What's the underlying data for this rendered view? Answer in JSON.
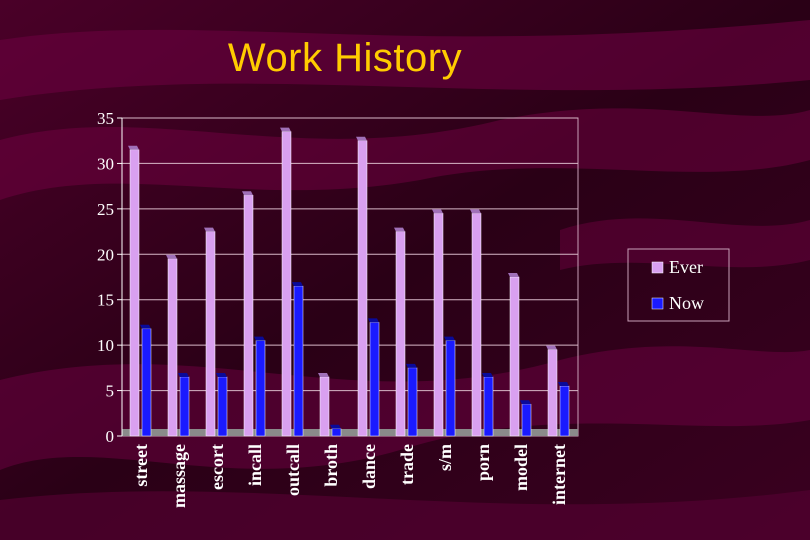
{
  "slide": {
    "title": "Work History",
    "colors": {
      "background": "#3a0020",
      "title": "#ffcc00",
      "ever_fill": "#d9a0f0",
      "now_fill": "#1a1aff",
      "axis_text": "#ffffff"
    }
  },
  "chart_data": {
    "type": "bar",
    "title": "Work History",
    "categories": [
      "street",
      "massage",
      "escort",
      "incall",
      "outcall",
      "broth",
      "dance",
      "trade",
      "s/m",
      "porn",
      "model",
      "internet"
    ],
    "series": [
      {
        "name": "Ever",
        "color": "#d9a0f0",
        "values": [
          31.5,
          19.5,
          22.5,
          26.5,
          33.5,
          6.5,
          32.5,
          22.5,
          24.5,
          24.5,
          17.5,
          9.5
        ]
      },
      {
        "name": "Now",
        "color": "#1a1aff",
        "values": [
          11.8,
          6.5,
          6.5,
          10.5,
          16.5,
          0.8,
          12.5,
          7.5,
          10.5,
          6.5,
          3.5,
          5.5
        ]
      }
    ],
    "ylim": [
      0,
      35
    ],
    "yticks": [
      0,
      5,
      10,
      15,
      20,
      25,
      30,
      35
    ],
    "grid": true,
    "legend": "right",
    "xlabel": "",
    "ylabel": ""
  }
}
